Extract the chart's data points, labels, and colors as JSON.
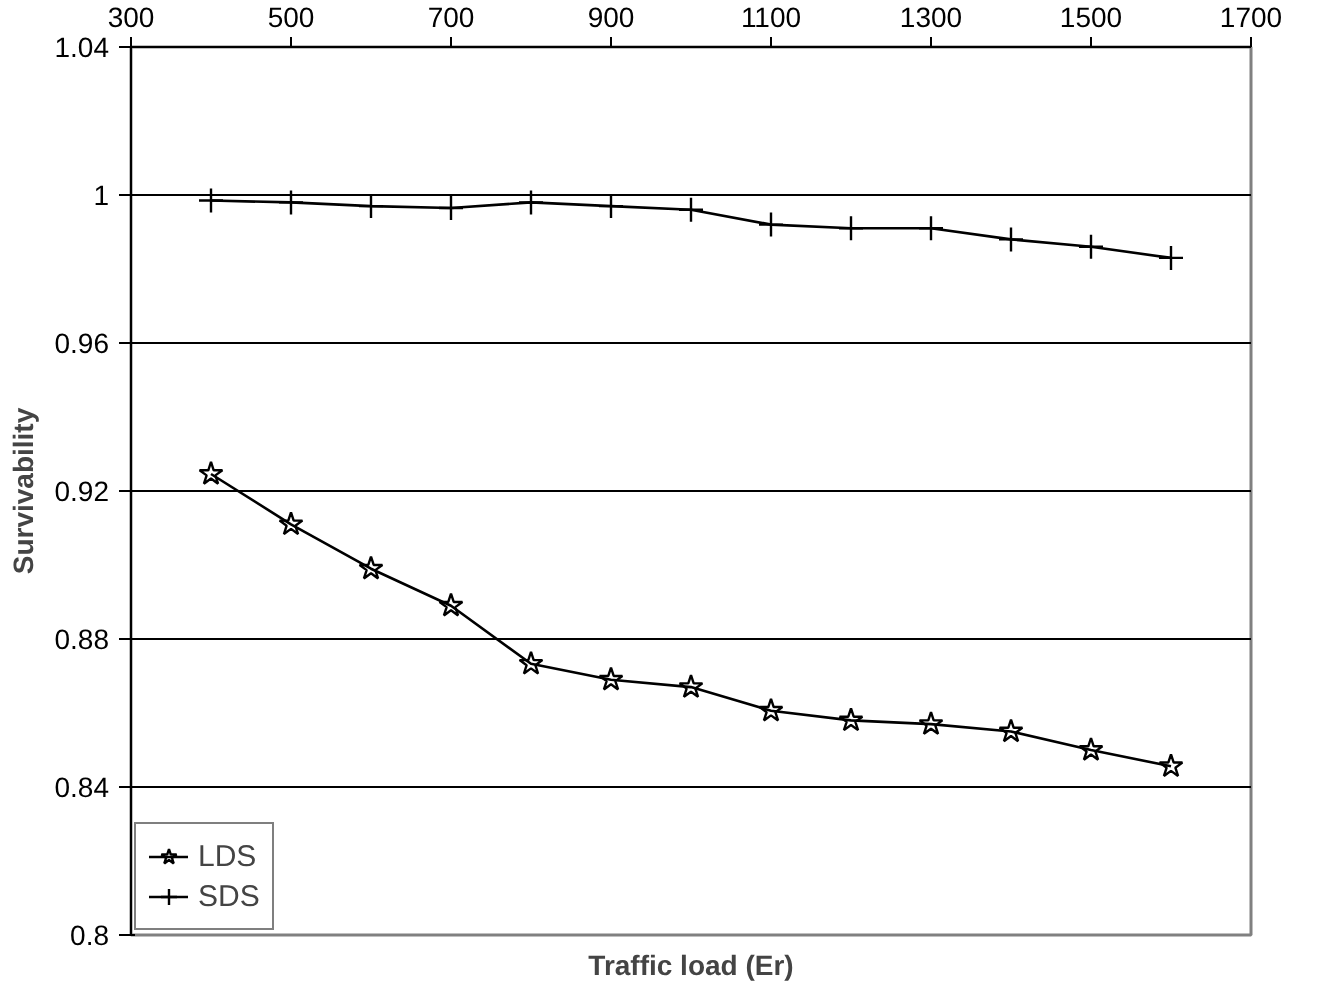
{
  "chart_data": {
    "type": "line",
    "xlabel": "Traffic load (Er)",
    "ylabel": "Survivability",
    "x": [
      400,
      500,
      600,
      700,
      800,
      900,
      1000,
      1100,
      1200,
      1300,
      1400,
      1500,
      1600
    ],
    "series": [
      {
        "name": "LDS",
        "color": "#000000",
        "marker": "star",
        "values": [
          0.9246,
          0.911,
          0.899,
          0.889,
          0.8733,
          0.869,
          0.867,
          0.8606,
          0.858,
          0.857,
          0.855,
          0.85,
          0.8456
        ]
      },
      {
        "name": "SDS",
        "color": "#000000",
        "marker": "cross",
        "values": [
          0.9985,
          0.998,
          0.997,
          0.9965,
          0.998,
          0.997,
          0.996,
          0.992,
          0.991,
          0.991,
          0.988,
          0.986,
          0.983
        ]
      }
    ],
    "xlim": [
      300,
      1700
    ],
    "xticks": [
      300,
      500,
      700,
      900,
      1100,
      1300,
      1500,
      1700
    ],
    "ylim": [
      0.8,
      1.04
    ],
    "yticks": [
      {
        "value": 0.8,
        "label": "0.8"
      },
      0.84,
      0.88,
      0.92,
      0.96,
      {
        "value": 1,
        "label": "1"
      },
      1.04
    ],
    "grid": "y",
    "legend": "bottom left"
  }
}
